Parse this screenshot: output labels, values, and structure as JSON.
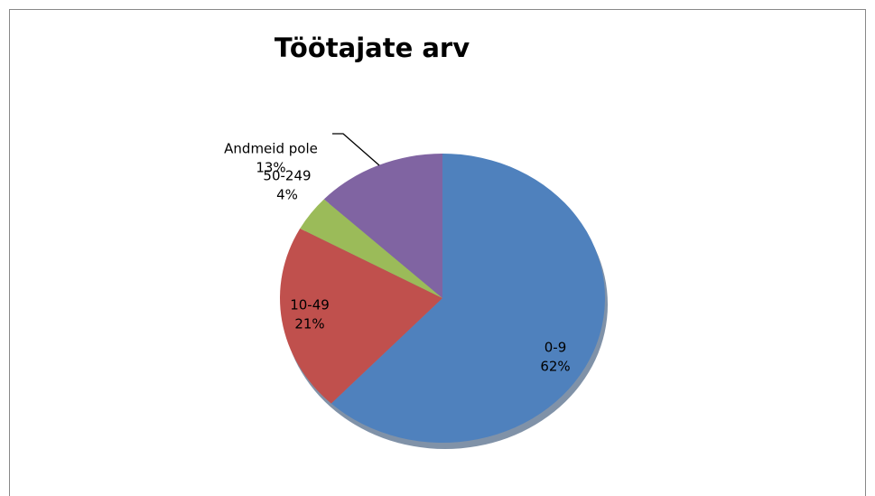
{
  "chart_data": {
    "type": "pie",
    "title": "Töötajate arv",
    "categories": [
      "0-9",
      "10-49",
      "50-249",
      "Andmeid pole"
    ],
    "values": [
      62,
      21,
      4,
      13
    ],
    "value_labels": [
      "62%",
      "21%",
      "4%",
      "13%"
    ],
    "colors": [
      "#4f81bd",
      "#c0504d",
      "#9bbb59",
      "#8064a2"
    ]
  }
}
